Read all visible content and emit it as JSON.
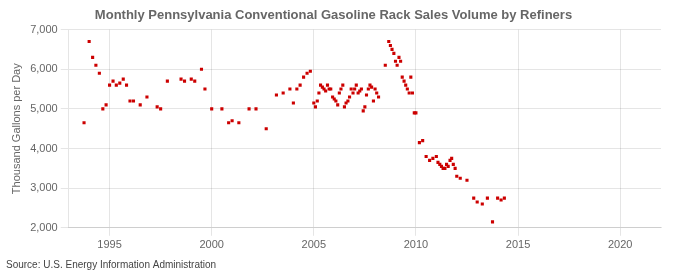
{
  "chart_data": {
    "type": "scatter",
    "title": "Monthly Pennsylvania Conventional Gasoline Rack Sales Volume by Refiners",
    "ylabel": "Thousand Gallons per Day",
    "annotation": "Source: U.S. Energy Information Administration",
    "color": "#cc0000",
    "marker": "square",
    "grid": true,
    "xlim": [
      1993.0,
      2022.0
    ],
    "ylim": [
      2000,
      7000
    ],
    "xticks": [
      1995,
      2000,
      2005,
      2010,
      2015,
      2020
    ],
    "yticks": [
      {
        "value": 2000,
        "label": "2,000"
      },
      {
        "value": 3000,
        "label": "3,000"
      },
      {
        "value": 4000,
        "label": "4,000"
      },
      {
        "value": 5000,
        "label": "5,000"
      },
      {
        "value": 6000,
        "label": "6,000"
      },
      {
        "value": 7000,
        "label": "7,000"
      }
    ],
    "x": [
      1993.75,
      1994.0,
      1994.17,
      1994.33,
      1994.5,
      1994.67,
      1994.83,
      1995.0,
      1995.17,
      1995.33,
      1995.5,
      1995.67,
      1995.83,
      1996.0,
      1996.17,
      1996.5,
      1996.83,
      1997.33,
      1997.5,
      1997.83,
      1998.5,
      1998.67,
      1999.0,
      1999.17,
      1999.5,
      1999.67,
      2000.0,
      2000.5,
      2000.83,
      2001.0,
      2001.33,
      2001.83,
      2002.17,
      2002.67,
      2003.17,
      2003.5,
      2003.83,
      2004.0,
      2004.17,
      2004.33,
      2004.5,
      2004.67,
      2004.83,
      2005.0,
      2005.08,
      2005.17,
      2005.25,
      2005.33,
      2005.42,
      2005.5,
      2005.58,
      2005.67,
      2005.75,
      2005.83,
      2005.92,
      2006.0,
      2006.08,
      2006.17,
      2006.25,
      2006.33,
      2006.42,
      2006.5,
      2006.58,
      2006.67,
      2006.75,
      2006.83,
      2006.92,
      2007.0,
      2007.08,
      2007.17,
      2007.25,
      2007.33,
      2007.42,
      2007.5,
      2007.58,
      2007.67,
      2007.75,
      2007.83,
      2007.92,
      2008.0,
      2008.08,
      2008.17,
      2008.5,
      2008.67,
      2008.75,
      2008.83,
      2008.92,
      2009.0,
      2009.08,
      2009.17,
      2009.25,
      2009.33,
      2009.42,
      2009.5,
      2009.58,
      2009.67,
      2009.75,
      2009.83,
      2009.92,
      2010.0,
      2010.17,
      2010.33,
      2010.5,
      2010.67,
      2010.83,
      2011.0,
      2011.08,
      2011.17,
      2011.25,
      2011.33,
      2011.42,
      2011.5,
      2011.58,
      2011.67,
      2011.75,
      2011.83,
      2011.92,
      2012.0,
      2012.17,
      2012.5,
      2012.83,
      2013.0,
      2013.25,
      2013.5,
      2013.75,
      2014.0,
      2014.17,
      2014.33
    ],
    "values": [
      4650,
      6700,
      6300,
      6100,
      5900,
      5000,
      5100,
      5600,
      5700,
      5600,
      5650,
      5750,
      5600,
      5200,
      5200,
      5100,
      5300,
      5050,
      5000,
      5700,
      5750,
      5700,
      5750,
      5700,
      6000,
      5500,
      5000,
      5000,
      4650,
      4700,
      4650,
      5000,
      5000,
      4500,
      5350,
      5400,
      5500,
      5150,
      5500,
      5600,
      5800,
      5900,
      5950,
      5150,
      5050,
      5200,
      5400,
      5600,
      5550,
      5500,
      5450,
      5600,
      5500,
      5500,
      5300,
      5250,
      5200,
      5100,
      5400,
      5500,
      5600,
      5050,
      5150,
      5200,
      5300,
      5500,
      5400,
      5500,
      5600,
      5400,
      5450,
      5500,
      4950,
      5050,
      5350,
      5500,
      5600,
      5550,
      5200,
      5500,
      5400,
      5300,
      6100,
      6700,
      6600,
      6500,
      6400,
      6200,
      6100,
      6300,
      6200,
      5800,
      5700,
      5600,
      5500,
      5400,
      5800,
      5400,
      4900,
      4900,
      4150,
      4200,
      3800,
      3700,
      3750,
      3800,
      3650,
      3600,
      3550,
      3500,
      3500,
      3600,
      3550,
      3700,
      3750,
      3600,
      3500,
      3300,
      3250,
      3200,
      2750,
      2650,
      2600,
      2750,
      2150,
      2750,
      2700,
      2750
    ]
  }
}
